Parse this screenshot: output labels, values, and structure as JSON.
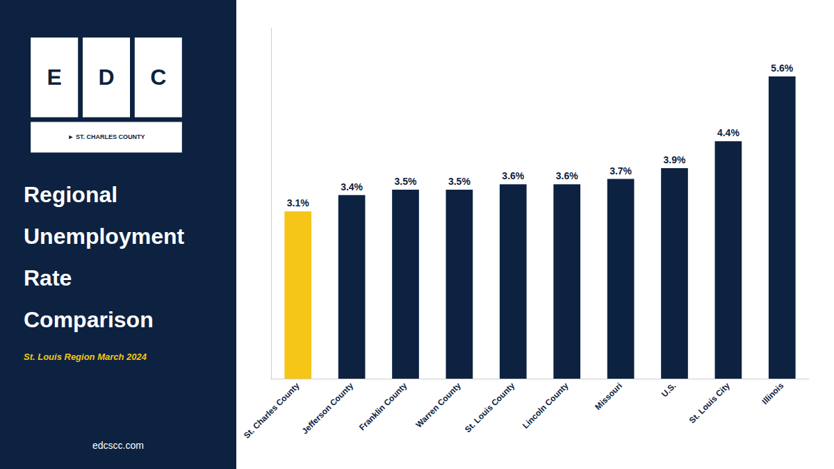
{
  "chart_data": {
    "type": "bar",
    "title": "Regional Unemployment Rate Comparison",
    "subtitle": "St. Louis Region March 2024",
    "annotations": [
      "E",
      "D",
      "C",
      "► ST. CHARLES COUNTY",
      "edcscc.com"
    ],
    "categories": [
      "St. Charles County",
      "Jefferson County",
      "Franklin County",
      "Warren County",
      "St. Louis County",
      "Lincoln County",
      "Missouri",
      "U.S.",
      "St. Louis City",
      "Illinois"
    ],
    "values": [
      3.1,
      3.4,
      3.5,
      3.5,
      3.6,
      3.6,
      3.7,
      3.9,
      4.4,
      5.6
    ],
    "value_labels": [
      "3.1%",
      "3.4%",
      "3.5%",
      "3.5%",
      "3.6%",
      "3.6%",
      "3.7%",
      "3.9%",
      "4.4%",
      "5.6%"
    ],
    "colors": [
      "#F5C518",
      "#0D2240",
      "#0D2240",
      "#0D2240",
      "#0D2240",
      "#0D2240",
      "#0D2240",
      "#0D2240",
      "#0D2240",
      "#0D2240"
    ],
    "ylim": [
      0,
      6.5
    ],
    "data_labels": true,
    "tick_labels": "x",
    "grid": false
  }
}
